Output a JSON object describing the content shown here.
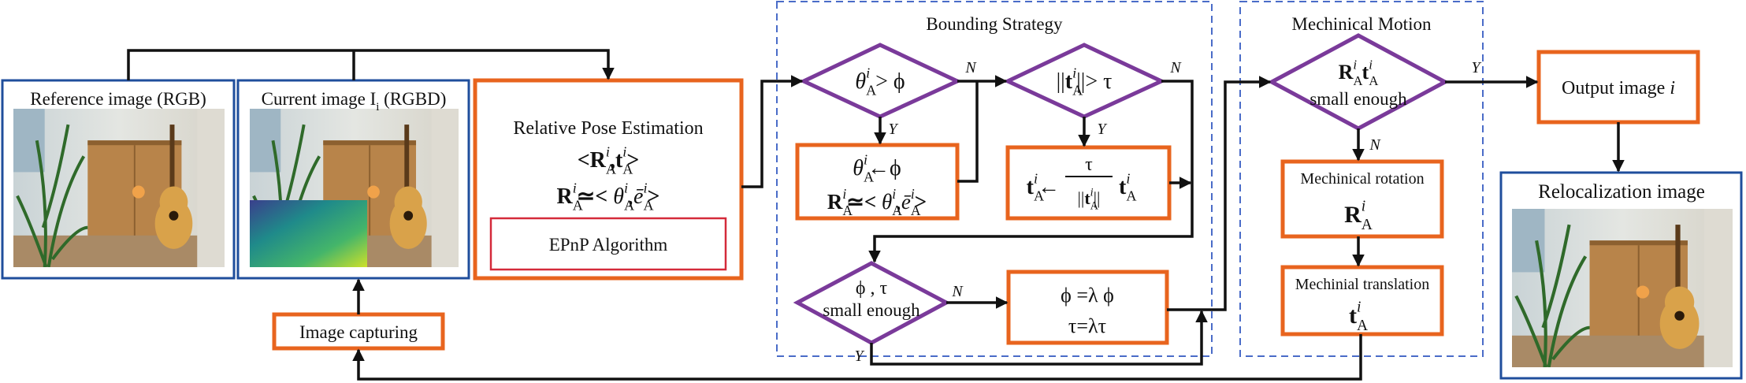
{
  "groups": {
    "bounding": "Bounding Strategy",
    "motion": "Mechinical Motion"
  },
  "reference_image": "Reference image (RGB)",
  "current_image": [
    {
      "text": "Current image I",
      "sub": "i"
    },
    {
      "text": " (RGBD)"
    }
  ],
  "relative_pose": {
    "title": "Relative Pose Estimation",
    "line1": [
      {
        "text": "<",
        "bold": true
      },
      {
        "text": "R",
        "bold": true,
        "sub": "A",
        "sup": "i"
      },
      {
        "text": ",",
        "bold": true
      },
      {
        "text": "t",
        "bold": true,
        "sub": "A",
        "sup": "i"
      },
      {
        "text": ">",
        "bold": true
      }
    ],
    "line2": [
      {
        "text": "R",
        "bold": true,
        "sub": "A",
        "sup": "i"
      },
      {
        "text": "≃< ",
        "bold": true
      },
      {
        "text": "θ",
        "italic": true,
        "sub": "A",
        "sup": "i"
      },
      {
        "text": ","
      },
      {
        "text": "ē",
        "italic": true,
        "sub": "A",
        "sup": "i"
      },
      {
        "text": ">",
        "bold": true
      }
    ],
    "algorithm": "EPnP Algorithm"
  },
  "image_capturing": "Image capturing",
  "angle_check": [
    {
      "text": "θ",
      "italic": true,
      "sub": "A",
      "sup": "i"
    },
    {
      "text": " > ϕ"
    }
  ],
  "angle_bound": {
    "line1": [
      {
        "text": "θ",
        "italic": true,
        "sub": "A",
        "sup": "i"
      },
      {
        "text": "←ϕ"
      }
    ],
    "line2": [
      {
        "text": "R",
        "bold": true,
        "sub": "A",
        "sup": "i"
      },
      {
        "text": "≃< ",
        "bold": true
      },
      {
        "text": "θ",
        "italic": true,
        "sub": "A",
        "sup": "i"
      },
      {
        "text": ","
      },
      {
        "text": "ē",
        "italic": true,
        "sub": "A",
        "sup": "i"
      },
      {
        "text": ">",
        "bold": true
      }
    ]
  },
  "translation_check": [
    {
      "text": "||"
    },
    {
      "text": "t",
      "bold": true,
      "sub": "A",
      "sup": "i"
    },
    {
      "text": "||> τ"
    }
  ],
  "translation_bound": {
    "lhs": [
      {
        "text": "t",
        "bold": true,
        "sub": "A",
        "sup": "i"
      },
      {
        "text": "←"
      }
    ],
    "numerator": "τ",
    "denominator": [
      {
        "text": "||"
      },
      {
        "text": "t",
        "bold": true,
        "sub": "A",
        "sup": "i"
      },
      {
        "text": "||"
      }
    ],
    "rhs": [
      {
        "text": "t",
        "bold": true,
        "sub": "A",
        "sup": "i"
      }
    ]
  },
  "threshold_check": {
    "line1": "ϕ , τ",
    "line2": "small enough"
  },
  "threshold_update": {
    "line1": "ϕ =λ ϕ",
    "line2": "τ=λτ"
  },
  "motion_check": {
    "line1": [
      {
        "text": "R",
        "bold": true,
        "sub": "A",
        "sup": "i"
      },
      {
        "text": " "
      },
      {
        "text": "t",
        "bold": true,
        "sub": "A",
        "sup": "i"
      }
    ],
    "line2": "small enough"
  },
  "mechanical_rotation": {
    "label": "Mechinical rotation",
    "formula": [
      {
        "text": "R",
        "bold": true,
        "sub": "A",
        "sup": "i"
      }
    ]
  },
  "mechanical_translation": {
    "label": "Mechinial translation",
    "formula": [
      {
        "text": "t",
        "bold": true,
        "sub": "A",
        "sup": "i"
      }
    ]
  },
  "output_image": [
    {
      "text": "Output image "
    },
    {
      "text": "i",
      "italic": true
    }
  ],
  "relocalization_image": "Relocalization image",
  "edge_labels": [
    "N",
    "Y",
    "N",
    "Y",
    "N",
    "Y",
    "Y",
    "N"
  ]
}
